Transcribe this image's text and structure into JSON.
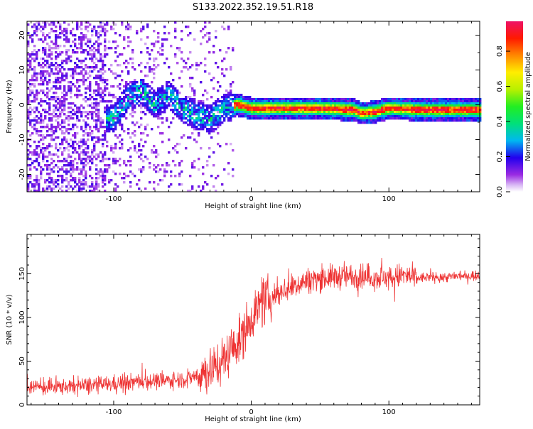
{
  "title": "S133.2022.352.19.51.R18",
  "colors": {
    "series": "#ee3333",
    "background": "#ffffff",
    "frame": "#000000"
  },
  "chart_data": [
    {
      "type": "heatmap",
      "xlabel": "Height of straight line (km)",
      "ylabel": "Frequency (Hz)",
      "xlim": [
        -163,
        166
      ],
      "ylim": [
        -25,
        24
      ],
      "xticks": [
        -100,
        0,
        100
      ],
      "yticks": [
        -20,
        -10,
        0,
        10,
        20
      ],
      "colormap": "rainbow",
      "colorbar": {
        "label": "Normalized spectral amplitude",
        "range": [
          0,
          1
        ],
        "ticks": [
          "0.0",
          "0.2",
          "0.4",
          "0.6",
          "0.8"
        ]
      },
      "ridge": [
        {
          "x": -100,
          "y": -4
        },
        {
          "x": -90,
          "y": 2
        },
        {
          "x": -80,
          "y": 4
        },
        {
          "x": -70,
          "y": 0
        },
        {
          "x": -60,
          "y": 3
        },
        {
          "x": -50,
          "y": -1
        },
        {
          "x": -40,
          "y": -3
        },
        {
          "x": -30,
          "y": -4
        },
        {
          "x": -20,
          "y": -1
        },
        {
          "x": -10,
          "y": 0
        },
        {
          "x": 0,
          "y": -1
        },
        {
          "x": 25,
          "y": -1
        },
        {
          "x": 50,
          "y": -1
        },
        {
          "x": 75,
          "y": -1.5
        },
        {
          "x": 80,
          "y": -2.5
        },
        {
          "x": 90,
          "y": -2
        },
        {
          "x": 100,
          "y": -1
        },
        {
          "x": 125,
          "y": -1.5
        },
        {
          "x": 166,
          "y": -1.5
        }
      ]
    },
    {
      "type": "line",
      "xlabel": "Height of straight line (km)",
      "ylabel": "SNR (10 * v/v)",
      "xlim": [
        -163,
        166
      ],
      "ylim": [
        0,
        195
      ],
      "xticks": [
        -100,
        0,
        100
      ],
      "yticks": [
        0,
        50,
        100,
        150
      ],
      "series": [
        {
          "x": [
            -163,
            -150,
            -120,
            -100,
            -80,
            -60,
            -45,
            -40,
            -30,
            -20,
            -15,
            -10,
            -5,
            0,
            5,
            10,
            20,
            30,
            40,
            50,
            60,
            70,
            80,
            90,
            100,
            110,
            120,
            130,
            140,
            150,
            166
          ],
          "y": [
            21,
            20,
            22,
            24,
            27,
            28,
            30,
            34,
            40,
            52,
            62,
            70,
            85,
            100,
            112,
            118,
            128,
            136,
            142,
            145,
            146,
            147,
            147,
            146,
            145,
            148,
            145,
            146,
            146,
            147,
            148
          ]
        }
      ]
    }
  ]
}
